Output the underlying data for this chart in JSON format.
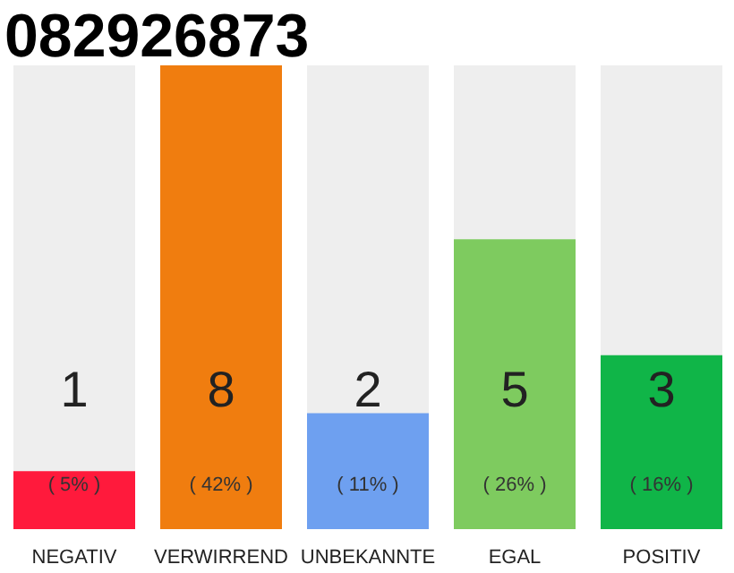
{
  "chart_data": {
    "type": "bar",
    "title": "082926873",
    "categories": [
      "NEGATIV",
      "VERWIRREND",
      "UNBEKANNTE",
      "EGAL",
      "POSITIV"
    ],
    "values": [
      1,
      8,
      2,
      5,
      3
    ],
    "colors": [
      "#ff1a3c",
      "#f07d0f",
      "#6ea0f0",
      "#7ecb5f",
      "#10b548"
    ],
    "data_labels": true,
    "annotations": [
      "( 5% )",
      "( 42% )",
      "( 11% )",
      "( 26% )",
      "( 16% )"
    ]
  }
}
